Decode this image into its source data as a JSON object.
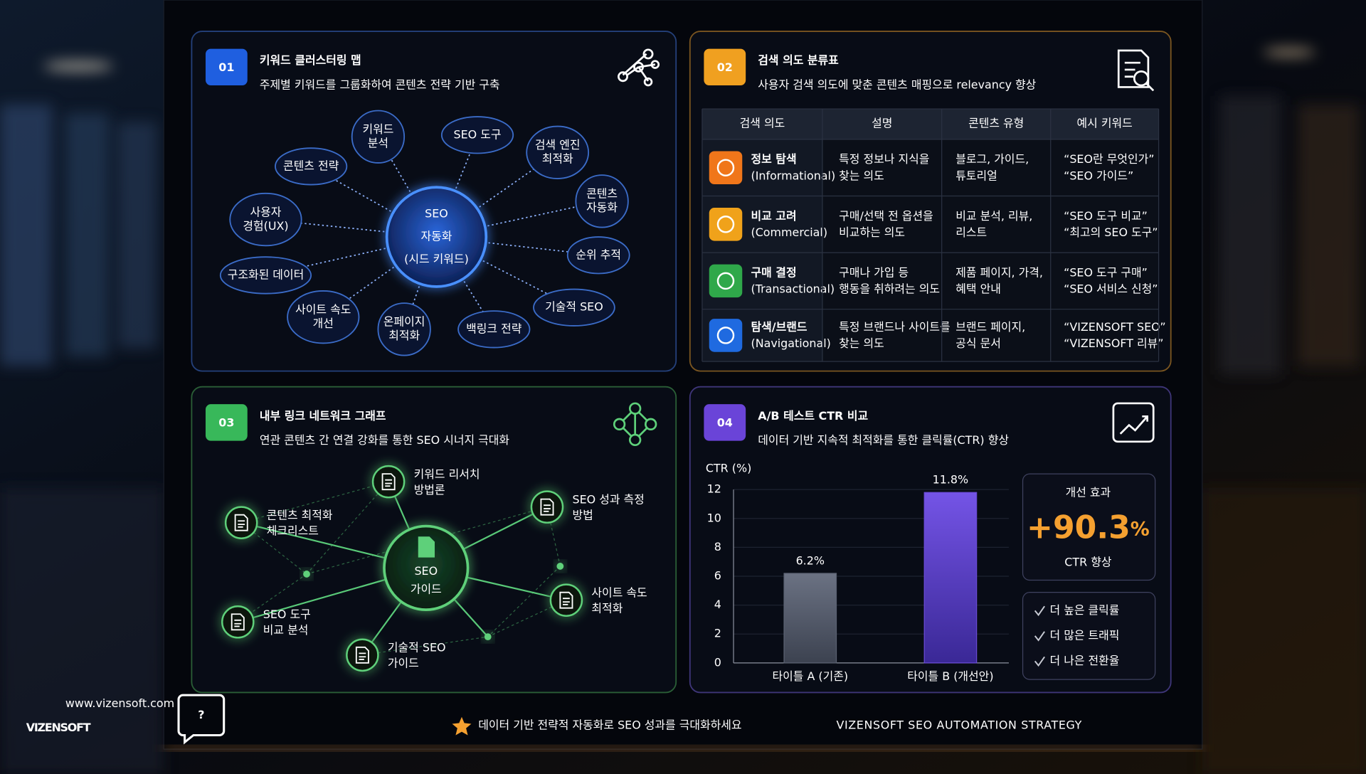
{
  "brand": {
    "url": "www.vizensoft.com",
    "name": "VIZENSOFT",
    "icon": "?"
  },
  "footer": {
    "tagline": "데이터 기반 전략적 자동화로 SEO 성과를 극대화하세요",
    "strategy": "VIZENSOFT SEO AUTOMATION STRATEGY"
  },
  "panels": [
    {
      "number": "01",
      "title": "키워드 클러스터링 맵",
      "subtitle": "주제별 키워드를 그룹화하여 콘텐츠 전략 기반 구축",
      "color": "#1f5fe0",
      "title_color": "#6fa8ff",
      "border_color": "#24407a",
      "center": [
        "SEO",
        "자동화",
        "(시드 키워드)"
      ],
      "nodes": [
        {
          "label": [
            "키워드",
            "분석"
          ]
        },
        {
          "label": [
            "SEO 도구"
          ]
        },
        {
          "label": [
            "검색 엔진",
            "최적화"
          ]
        },
        {
          "label": [
            "콘텐츠",
            "자동화"
          ]
        },
        {
          "label": [
            "순위 추적"
          ]
        },
        {
          "label": [
            "기술적 SEO"
          ]
        },
        {
          "label": [
            "백링크 전략"
          ]
        },
        {
          "label": [
            "온페이지",
            "최적화"
          ]
        },
        {
          "label": [
            "사이트 속도",
            "개선"
          ]
        },
        {
          "label": [
            "구조화된 데이터"
          ]
        },
        {
          "label": [
            "사용자",
            "경험(UX)"
          ]
        },
        {
          "label": [
            "콘텐츠 전략"
          ]
        }
      ]
    },
    {
      "number": "02",
      "title": "검색 의도 분류표",
      "subtitle": "사용자 검색 의도에 맞춘 콘텐츠 매핑으로 relevancy 향상",
      "color": "#f0a020",
      "title_color": "#f5a632",
      "border_color": "#7a5520",
      "table": {
        "header": [
          "검색 의도",
          "설명",
          "콘텐츠 유형",
          "예시 키워드"
        ],
        "rows": [
          {
            "intent": "정보 탐색",
            "english": "(Informational)",
            "description": [
              "특정 정보나 지식을",
              "찾는 의도"
            ],
            "content": [
              "블로그, 가이드,",
              "튜토리얼"
            ],
            "examples": [
              "“SEO란 무엇인가”",
              "“SEO 가이드”"
            ],
            "color": "#f0761a"
          },
          {
            "intent": "비교 고려",
            "english": "(Commercial)",
            "description": [
              "구매/선택 전 옵션을",
              "비교하는 의도"
            ],
            "content": [
              "비교 분석, 리뷰,",
              "리스트"
            ],
            "examples": [
              "“SEO 도구 비교”",
              "“최고의 SEO 도구”"
            ],
            "color": "#f0a21a"
          },
          {
            "intent": "구매 결정",
            "english": "(Transactional)",
            "description": [
              "구매나 가입 등",
              "행동을 취하려는 의도"
            ],
            "content": [
              "제품 페이지, 가격,",
              "혜택 안내"
            ],
            "examples": [
              "“SEO 도구 구매”",
              "“SEO 서비스 신청”"
            ],
            "color": "#2fa84a"
          },
          {
            "intent": "탐색/브랜드",
            "english": "(Navigational)",
            "description": [
              "특정 브랜드나 사이트를",
              "찾는 의도"
            ],
            "content": [
              "브랜드 페이지,",
              "공식 문서"
            ],
            "examples": [
              "“VIZENSOFT SEO”",
              "“VIZENSOFT 리뷰”"
            ],
            "color": "#1f6ae0"
          }
        ]
      }
    },
    {
      "number": "03",
      "title": "내부 링크 네트워크 그래프",
      "subtitle": "연관 콘텐츠 간 연결 강화를 통한 SEO 시너지 극대화",
      "color": "#38b85a",
      "title_color": "#5ed07a",
      "border_color": "#2a5e36",
      "center": [
        "SEO",
        "가이드"
      ],
      "nodes": [
        {
          "label": [
            "키워드 리서치",
            "방법론"
          ]
        },
        {
          "label": [
            "콘텐츠 최적화",
            "체크리스트"
          ]
        },
        {
          "label": [
            "SEO 성과 측정",
            "방법"
          ]
        },
        {
          "label": [
            "사이트 속도",
            "최적화"
          ]
        },
        {
          "label": [
            "SEO 도구",
            "비교 분석"
          ]
        },
        {
          "label": [
            "기술적 SEO",
            "가이드"
          ]
        }
      ]
    },
    {
      "number": "04",
      "title": "A/B 테스트 CTR 비교",
      "subtitle": "데이터 기반 지속적 최적화를 통한 클릭률(CTR) 향상",
      "color": "#6a44d8",
      "title_color": "#9a7aff",
      "border_color": "#3e3578"
    }
  ],
  "chart_data": {
    "type": "bar",
    "y_label": "CTR (%)",
    "categories": [
      "타이틀 A (기존)",
      "타이틀 B (개선안)"
    ],
    "values": [
      6.2,
      11.8
    ],
    "value_labels": [
      "6.2%",
      "11.8%"
    ],
    "colors": [
      "#5b6272",
      "#6a4bd6"
    ],
    "ylim": [
      0,
      12
    ],
    "yticks": [
      0,
      2,
      4,
      6,
      8,
      10,
      12
    ],
    "grid": true
  },
  "improvement": {
    "label": "개선 효과",
    "value": "+90.3",
    "unit": "%",
    "caption": "CTR 향상"
  },
  "benefits": [
    "더 높은 클릭률",
    "더 많은 트래픽",
    "더 나은 전환율"
  ]
}
